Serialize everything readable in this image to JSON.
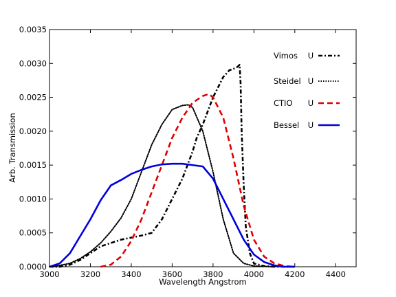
{
  "chart_data": {
    "type": "line",
    "title": "",
    "xlabel": "Wavelength Angstrom",
    "ylabel": "Arb. Transmission",
    "xlim": [
      3000,
      4500
    ],
    "ylim": [
      0,
      0.0035
    ],
    "x_ticks": [
      "3000",
      "3200",
      "3400",
      "3600",
      "3800",
      "4000",
      "4200",
      "4400"
    ],
    "y_ticks": [
      "0.0000",
      "0.0005",
      "0.0010",
      "0.0015",
      "0.0020",
      "0.0025",
      "0.0030",
      "0.0035"
    ],
    "grid": false,
    "legend_position": "top-right",
    "series": [
      {
        "name": "Vimos U",
        "color": "#000000",
        "style": "dash-dot",
        "x": [
          3000,
          3050,
          3100,
          3150,
          3200,
          3250,
          3300,
          3350,
          3400,
          3450,
          3500,
          3550,
          3600,
          3650,
          3700,
          3720,
          3750,
          3800,
          3850,
          3880,
          3900,
          3920,
          3930,
          3935,
          3940,
          3950,
          3960,
          3980,
          4000,
          4050,
          4100,
          4200
        ],
        "y": [
          0.0,
          0.0,
          3e-05,
          0.0001,
          0.0002,
          0.0003,
          0.00035,
          0.0004,
          0.00043,
          0.00046,
          0.0005,
          0.0007,
          0.001,
          0.0013,
          0.0017,
          0.0019,
          0.0021,
          0.0025,
          0.0028,
          0.0029,
          0.00292,
          0.00295,
          0.00298,
          0.0027,
          0.002,
          0.0012,
          0.0006,
          0.0002,
          5e-05,
          1e-05,
          0.0,
          0.0
        ]
      },
      {
        "name": "Steidel U",
        "color": "#000000",
        "style": "dotted",
        "x": [
          3000,
          3050,
          3100,
          3150,
          3200,
          3250,
          3300,
          3350,
          3400,
          3450,
          3500,
          3550,
          3600,
          3650,
          3680,
          3700,
          3750,
          3800,
          3850,
          3900,
          3950,
          4000,
          4100
        ],
        "y": [
          0.0,
          2e-05,
          5e-05,
          0.00012,
          0.00022,
          0.00035,
          0.00052,
          0.00072,
          0.001,
          0.0014,
          0.0018,
          0.0021,
          0.00232,
          0.00238,
          0.00239,
          0.00235,
          0.002,
          0.0014,
          0.0007,
          0.0002,
          5e-05,
          1e-05,
          0.0
        ]
      },
      {
        "name": "CTIO U",
        "color": "#dd0000",
        "style": "dashed",
        "x": [
          3250,
          3300,
          3350,
          3400,
          3450,
          3500,
          3550,
          3600,
          3650,
          3700,
          3750,
          3780,
          3800,
          3850,
          3900,
          3950,
          4000,
          4050,
          4100,
          4150,
          4200
        ],
        "y": [
          0.0,
          3e-05,
          0.00015,
          0.00038,
          0.0007,
          0.0011,
          0.0015,
          0.0019,
          0.0022,
          0.00242,
          0.00252,
          0.00255,
          0.0025,
          0.0022,
          0.0016,
          0.0009,
          0.0004,
          0.00015,
          5e-05,
          1e-05,
          0.0
        ]
      },
      {
        "name": "Bessel U",
        "color": "#0000dd",
        "style": "solid",
        "x": [
          3000,
          3050,
          3100,
          3150,
          3200,
          3250,
          3300,
          3350,
          3400,
          3450,
          3500,
          3550,
          3600,
          3650,
          3700,
          3750,
          3800,
          3850,
          3900,
          3950,
          4000,
          4050,
          4100,
          4150,
          4200
        ],
        "y": [
          0.0,
          5e-05,
          0.0002,
          0.00045,
          0.0007,
          0.00098,
          0.0012,
          0.00128,
          0.00137,
          0.00143,
          0.00148,
          0.00151,
          0.00152,
          0.00152,
          0.0015,
          0.00148,
          0.0013,
          0.001,
          0.0007,
          0.0004,
          0.00018,
          7e-05,
          2e-05,
          0.0,
          0.0
        ]
      }
    ]
  },
  "legend": [
    {
      "name": "Vimos U",
      "label_left": "Vimos",
      "label_right": "U"
    },
    {
      "name": "Steidel U",
      "label_left": "Steidel",
      "label_right": "U"
    },
    {
      "name": "CTIO U",
      "label_left": "CTIO",
      "label_right": "U"
    },
    {
      "name": "Bessel U",
      "label_left": "Bessel",
      "label_right": "U"
    }
  ]
}
